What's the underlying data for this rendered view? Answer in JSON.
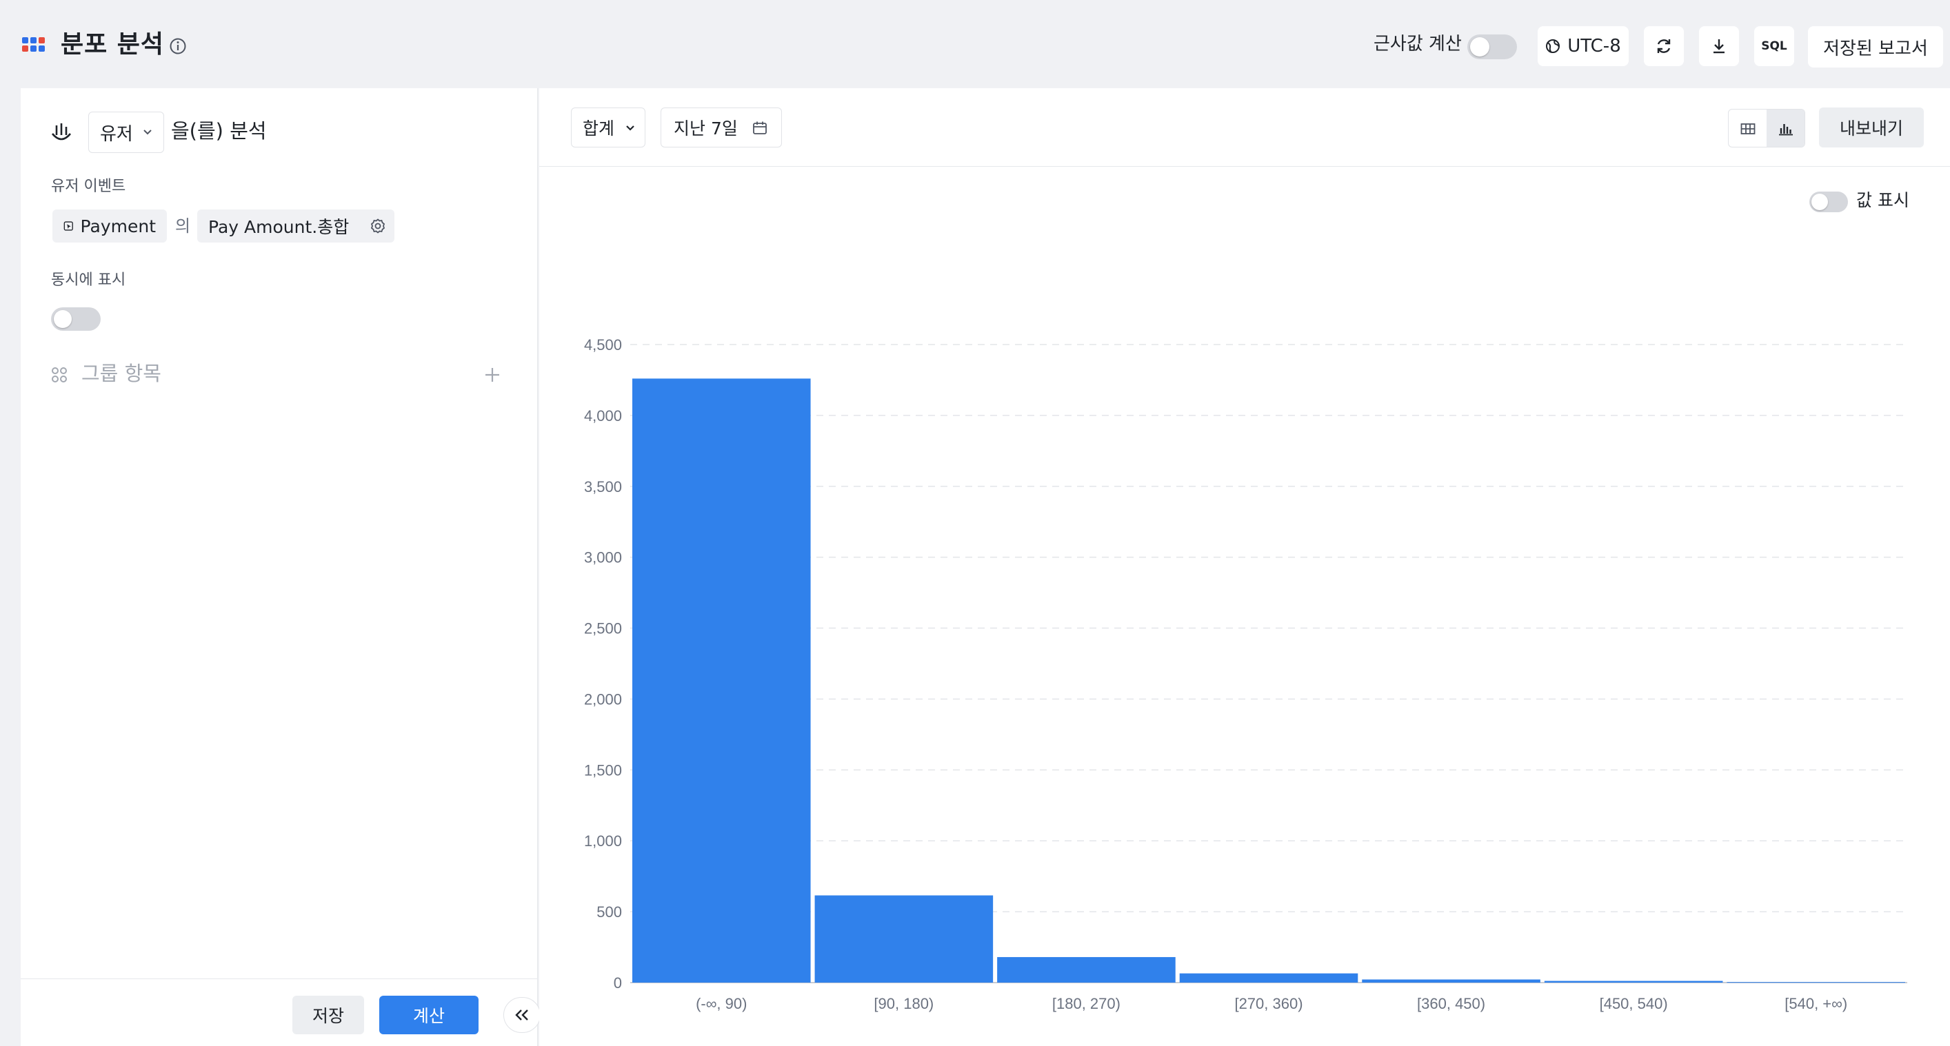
{
  "header": {
    "title": "분포 분석",
    "approx_label": "근사값 계산",
    "timezone": "UTC-8",
    "sql_label": "SQL",
    "saved_reports": "저장된 보고서"
  },
  "left": {
    "subject": "유저",
    "analyze_suffix": "을(를) 분석",
    "event_section_label": "유저 이벤트",
    "event_name": "Payment",
    "of_text": "의",
    "property": "Pay Amount.총합",
    "simultaneous_label": "동시에 표시",
    "group_label": "그룹 항목",
    "save_label": "저장",
    "calculate_label": "계산"
  },
  "right": {
    "aggregation": "합계",
    "date_range": "지난 7일",
    "export_label": "내보내기",
    "show_values_label": "값 표시"
  },
  "colors": {
    "accent": "#2f80ed",
    "bar": "#3081eb"
  },
  "chart_data": {
    "type": "bar",
    "categories": [
      "(-∞, 90)",
      "[90, 180)",
      "[180, 270)",
      "[270, 360)",
      "[360, 450)",
      "[450, 540)",
      "[540, +∞)"
    ],
    "values": [
      4260,
      615,
      180,
      65,
      22,
      12,
      4
    ],
    "yticks": [
      "0",
      "500",
      "1,000",
      "1,500",
      "2,000",
      "2,500",
      "3,000",
      "3,500",
      "4,000",
      "4,500"
    ],
    "ylim": [
      0,
      4500
    ],
    "grid": true
  }
}
